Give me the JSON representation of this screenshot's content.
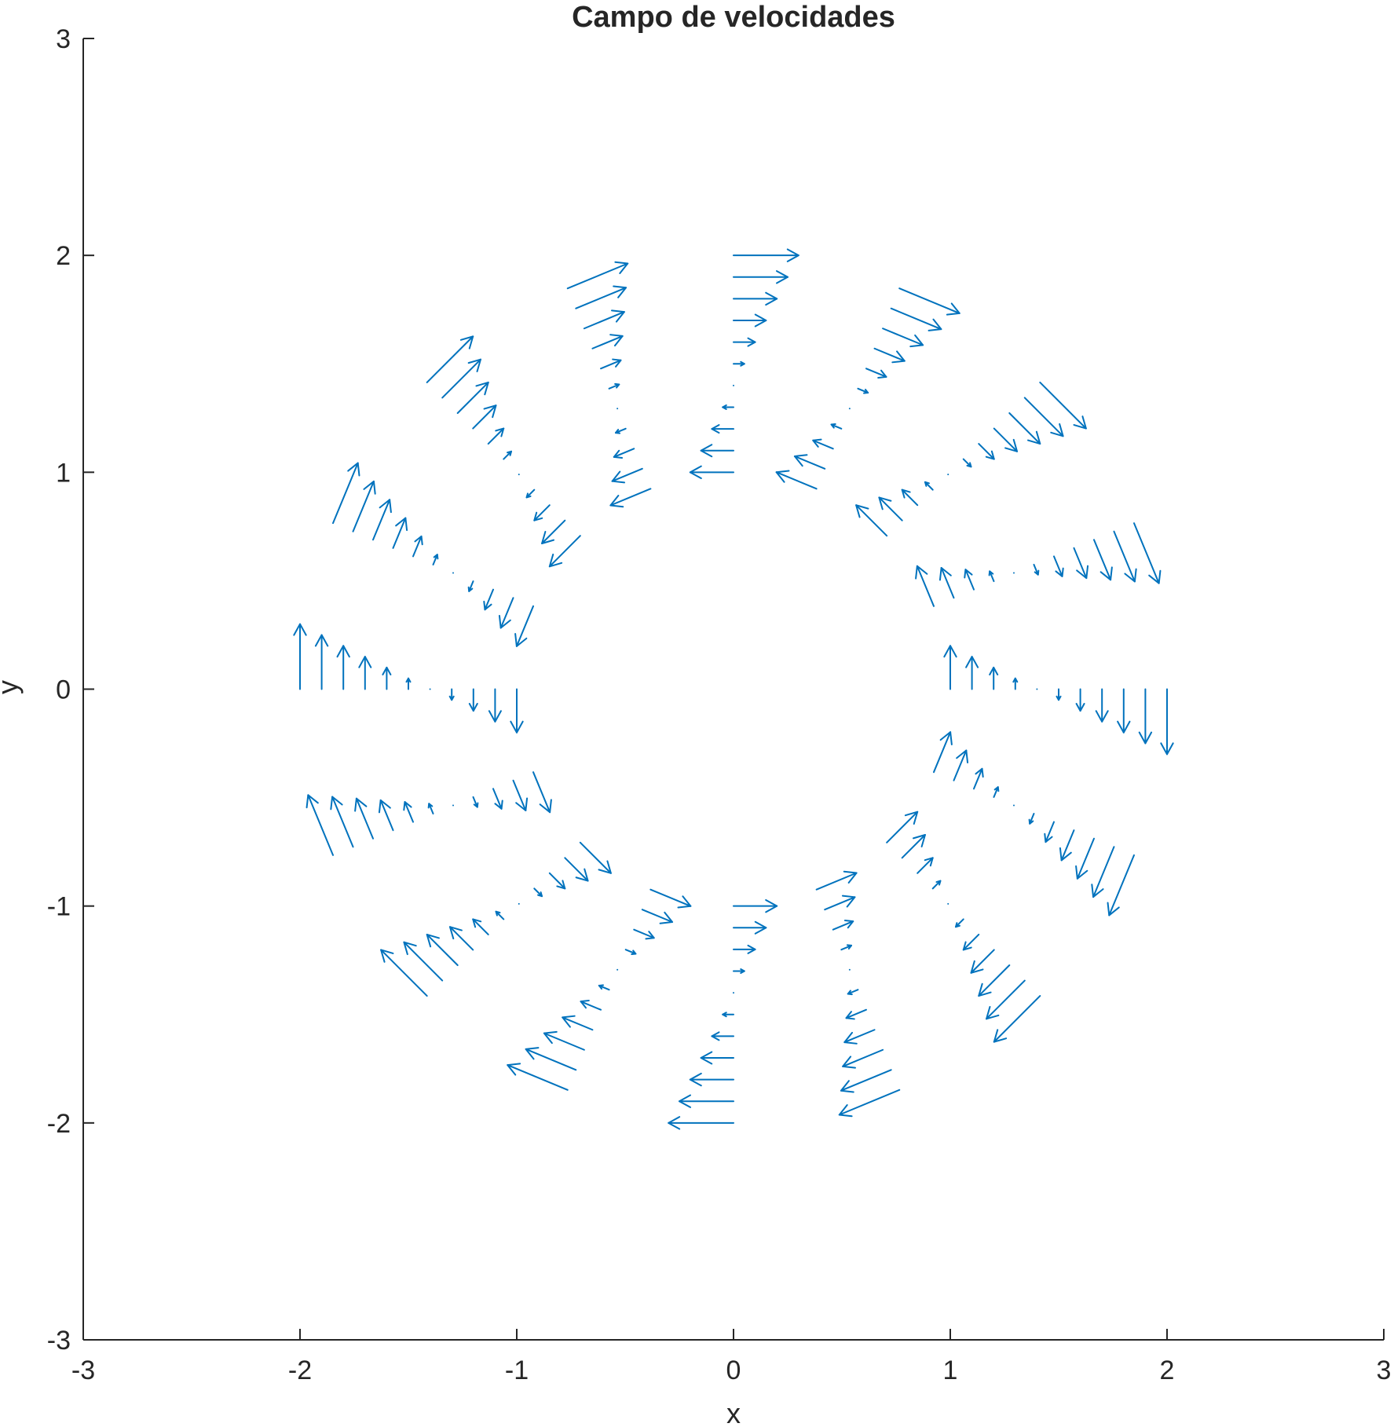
{
  "chart_data": {
    "type": "quiver",
    "title": "Campo de velocidades",
    "xlabel": "x",
    "ylabel": "y",
    "xlim": [
      -3,
      3
    ],
    "ylim": [
      -3,
      3
    ],
    "xticks": [
      "-3",
      "-2",
      "-1",
      "0",
      "1",
      "2",
      "3"
    ],
    "yticks": [
      "-3",
      "-2",
      "-1",
      "0",
      "1",
      "2",
      "3"
    ],
    "color": "#0072BD",
    "grid": false,
    "radial_points": [
      1.0,
      1.1,
      1.2,
      1.3,
      1.4,
      1.5,
      1.6,
      1.7,
      1.8,
      1.9,
      2.0
    ],
    "angles_deg": [
      0,
      22.5,
      45,
      67.5,
      90,
      112.5,
      135,
      157.5,
      180,
      202.5,
      225,
      247.5,
      270,
      292.5,
      315,
      337.5
    ],
    "vector_field": {
      "description_of_values": "u = -K*y*(1/r^2) scaled, v = K*x*(1/r^2) scaled so |V| grows from ~0 at r=1.4",
      "vectors": [
        {
          "angle": 0,
          "vectors": [
            [
              1.0,
              0.0,
              0.0,
              0.16
            ],
            [
              1.1,
              0.0,
              0.0,
              0.09
            ],
            [
              1.2,
              0.0,
              0.0,
              0.03
            ],
            [
              1.3,
              0.0,
              0.0,
              -0.03
            ],
            [
              1.4,
              0.0,
              0.0,
              -0.07
            ],
            [
              1.5,
              0.0,
              0.0,
              -0.11
            ],
            [
              1.6,
              0.0,
              0.0,
              -0.14
            ],
            [
              1.7,
              0.0,
              0.0,
              -0.17
            ],
            [
              1.8,
              0.0,
              0.0,
              -0.2
            ],
            [
              1.9,
              0.0,
              0.0,
              -0.23
            ],
            [
              2.0,
              0.0,
              0.0,
              -0.3
            ]
          ]
        }
      ]
    }
  }
}
